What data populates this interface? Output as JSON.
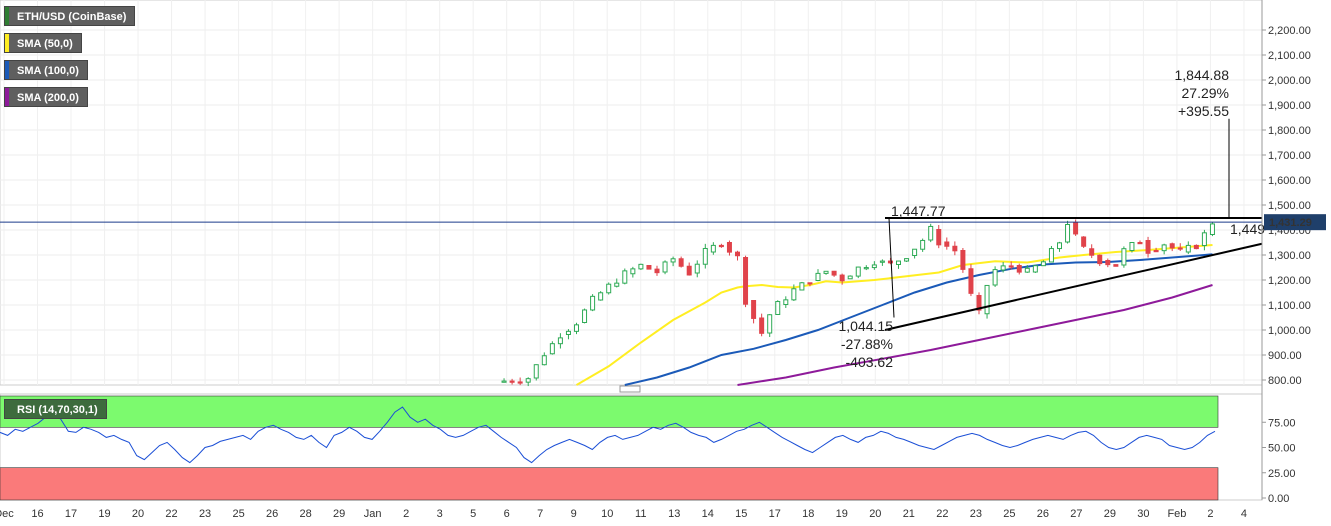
{
  "legend": {
    "main": {
      "label": "ETH/USD (CoinBase)",
      "color": "#2e7d32"
    },
    "sma50": {
      "label": "SMA (50,0)",
      "color": "#ffee22"
    },
    "sma100": {
      "label": "SMA (100,0)",
      "color": "#1b5ab8"
    },
    "sma200": {
      "label": "SMA (200,0)",
      "color": "#8e1a9a"
    }
  },
  "rsi": {
    "label": "RSI (14,70,30,1)",
    "overbought": 70,
    "oversold": 30,
    "ticks": [
      "0.00",
      "25.00",
      "50.00",
      "75.00"
    ],
    "ylim": [
      0,
      100
    ]
  },
  "current_price": {
    "label": "1,431.29",
    "value": 1431.29
  },
  "annotations": {
    "top": [
      "1,844.88",
      "27.29%",
      "+395.55"
    ],
    "low": [
      "1,044.15",
      "-27.88%",
      "-403.62"
    ],
    "resistance": "1,447.77",
    "right_price": "1,449"
  },
  "colors": {
    "up": "#2eaa55",
    "down": "#e0424a",
    "overbought_zone": "#7cfa6e",
    "oversold_zone": "#fa7a7a",
    "price_line": "#1a3a8a"
  },
  "chart_data": [
    {
      "type": "candlestick",
      "title": "ETH/USD (CoinBase)",
      "ylim": [
        780,
        2280
      ],
      "y_ticks": [
        "800.00",
        "900.00",
        "1,000.00",
        "1,100.00",
        "1,200.00",
        "1,300.00",
        "1,400.00",
        "1,500.00",
        "1,600.00",
        "1,700.00",
        "1,800.00",
        "1,900.00",
        "2,000.00",
        "2,100.00",
        "2,200.00"
      ],
      "x_ticks": [
        "Dec",
        "16",
        "17",
        "19",
        "20",
        "22",
        "23",
        "25",
        "26",
        "28",
        "29",
        "Jan",
        "2",
        "3",
        "5",
        "6",
        "7",
        "9",
        "10",
        "11",
        "13",
        "14",
        "15",
        "17",
        "18",
        "19",
        "20",
        "21",
        "22",
        "23",
        "25",
        "26",
        "27",
        "29",
        "30",
        "Feb",
        "2",
        "4"
      ],
      "series": [
        {
          "name": "price",
          "points": [
            [
              0,
              788,
              792
            ],
            [
              4,
              792,
              808
            ],
            [
              6,
              808,
              905
            ],
            [
              8,
              905,
              982
            ],
            [
              10,
              982,
              1030
            ],
            [
              12,
              1030,
              1120
            ],
            [
              14,
              1120,
              1175
            ],
            [
              16,
              1175,
              1225
            ],
            [
              18,
              1225,
              1258
            ],
            [
              20,
              1258,
              1232
            ],
            [
              22,
              1232,
              1285
            ],
            [
              24,
              1285,
              1228
            ],
            [
              26,
              1228,
              1312
            ],
            [
              28,
              1312,
              1350
            ],
            [
              30,
              1350,
              1290
            ],
            [
              31,
              1290,
              1118
            ],
            [
              32,
              1118,
              1048
            ],
            [
              33,
              1048,
              988
            ],
            [
              34,
              988,
              1062
            ],
            [
              35,
              1062,
              1102
            ],
            [
              37,
              1102,
              1160
            ],
            [
              39,
              1160,
              1198
            ],
            [
              41,
              1198,
              1235
            ],
            [
              43,
              1235,
              1205
            ],
            [
              45,
              1205,
              1248
            ],
            [
              47,
              1248,
              1275
            ],
            [
              49,
              1275,
              1262
            ],
            [
              51,
              1262,
              1298
            ],
            [
              53,
              1298,
              1360
            ],
            [
              54,
              1360,
              1402
            ],
            [
              55,
              1402,
              1352
            ],
            [
              57,
              1352,
              1318
            ],
            [
              58,
              1318,
              1245
            ],
            [
              59,
              1245,
              1138
            ],
            [
              60,
              1138,
              1065
            ],
            [
              61,
              1065,
              1180
            ],
            [
              62,
              1180,
              1240
            ],
            [
              64,
              1240,
              1258
            ],
            [
              66,
              1258,
              1232
            ],
            [
              68,
              1232,
              1272
            ],
            [
              70,
              1272,
              1352
            ],
            [
              71,
              1352,
              1430
            ],
            [
              72,
              1430,
              1372
            ],
            [
              73,
              1372,
              1325
            ],
            [
              75,
              1325,
              1278
            ],
            [
              77,
              1278,
              1260
            ],
            [
              78,
              1260,
              1318
            ],
            [
              80,
              1318,
              1358
            ],
            [
              81,
              1358,
              1318
            ],
            [
              83,
              1318,
              1345
            ],
            [
              85,
              1345,
              1312
            ],
            [
              87,
              1312,
              1338
            ],
            [
              88,
              1338,
              1382
            ],
            [
              89,
              1382,
              1431
            ]
          ]
        },
        {
          "name": "SMA (50,0)",
          "points": [
            [
              10,
              780
            ],
            [
              14,
              855
            ],
            [
              18,
              950
            ],
            [
              22,
              1040
            ],
            [
              26,
              1110
            ],
            [
              28,
              1150
            ],
            [
              30,
              1170
            ],
            [
              31,
              1175
            ],
            [
              33,
              1180
            ],
            [
              35,
              1172
            ],
            [
              37,
              1170
            ],
            [
              39,
              1180
            ],
            [
              41,
              1195
            ],
            [
              43,
              1190
            ],
            [
              47,
              1200
            ],
            [
              51,
              1215
            ],
            [
              55,
              1230
            ],
            [
              58,
              1260
            ],
            [
              62,
              1275
            ],
            [
              66,
              1270
            ],
            [
              70,
              1290
            ],
            [
              73,
              1300
            ],
            [
              77,
              1312
            ],
            [
              81,
              1320
            ],
            [
              85,
              1330
            ],
            [
              89,
              1340
            ]
          ]
        },
        {
          "name": "SMA (100,0)",
          "points": [
            [
              16,
              780
            ],
            [
              20,
              810
            ],
            [
              24,
              850
            ],
            [
              28,
              900
            ],
            [
              32,
              925
            ],
            [
              36,
              960
            ],
            [
              40,
              1000
            ],
            [
              44,
              1050
            ],
            [
              48,
              1100
            ],
            [
              52,
              1150
            ],
            [
              56,
              1190
            ],
            [
              60,
              1220
            ],
            [
              64,
              1245
            ],
            [
              68,
              1262
            ],
            [
              72,
              1270
            ],
            [
              76,
              1272
            ],
            [
              80,
              1280
            ],
            [
              84,
              1290
            ],
            [
              88,
              1300
            ],
            [
              89,
              1303
            ]
          ]
        },
        {
          "name": "SMA (200,0)",
          "points": [
            [
              30,
              780
            ],
            [
              36,
              810
            ],
            [
              42,
              850
            ],
            [
              48,
              885
            ],
            [
              54,
              920
            ],
            [
              60,
              960
            ],
            [
              66,
              1000
            ],
            [
              72,
              1040
            ],
            [
              78,
              1080
            ],
            [
              84,
              1130
            ],
            [
              89,
              1180
            ]
          ]
        }
      ]
    },
    {
      "type": "line",
      "title": "RSI (14,70,30,1)",
      "ylim": [
        0,
        100
      ],
      "series": [
        {
          "name": "RSI (14,70,30,1)",
          "values": [
            65,
            62,
            68,
            66,
            70,
            74,
            80,
            83,
            78,
            66,
            65,
            70,
            68,
            65,
            60,
            62,
            58,
            55,
            42,
            38,
            45,
            52,
            55,
            48,
            40,
            35,
            42,
            50,
            52,
            56,
            58,
            60,
            62,
            58,
            66,
            70,
            72,
            68,
            65,
            60,
            58,
            62,
            55,
            50,
            62,
            65,
            70,
            66,
            60,
            58,
            66,
            75,
            85,
            90,
            80,
            75,
            78,
            72,
            68,
            62,
            60,
            62,
            66,
            70,
            72,
            66,
            60,
            55,
            50,
            40,
            35,
            42,
            48,
            52,
            55,
            58,
            55,
            52,
            48,
            55,
            60,
            62,
            58,
            60,
            62,
            66,
            70,
            68,
            72,
            74,
            70,
            65,
            62,
            60,
            55,
            58,
            62,
            66,
            68,
            72,
            75,
            70,
            65,
            60,
            56,
            52,
            48,
            45,
            50,
            55,
            60,
            62,
            58,
            55,
            60,
            62,
            66,
            64,
            60,
            58,
            55,
            52,
            50,
            48,
            52,
            56,
            60,
            62,
            64,
            62,
            58,
            55,
            52,
            50,
            52,
            55,
            58,
            60,
            62,
            60,
            58,
            62,
            65,
            66,
            62,
            55,
            50,
            48,
            50,
            55,
            60,
            62,
            60,
            58,
            52,
            50,
            48,
            50,
            55,
            62,
            66
          ]
        }
      ]
    }
  ]
}
